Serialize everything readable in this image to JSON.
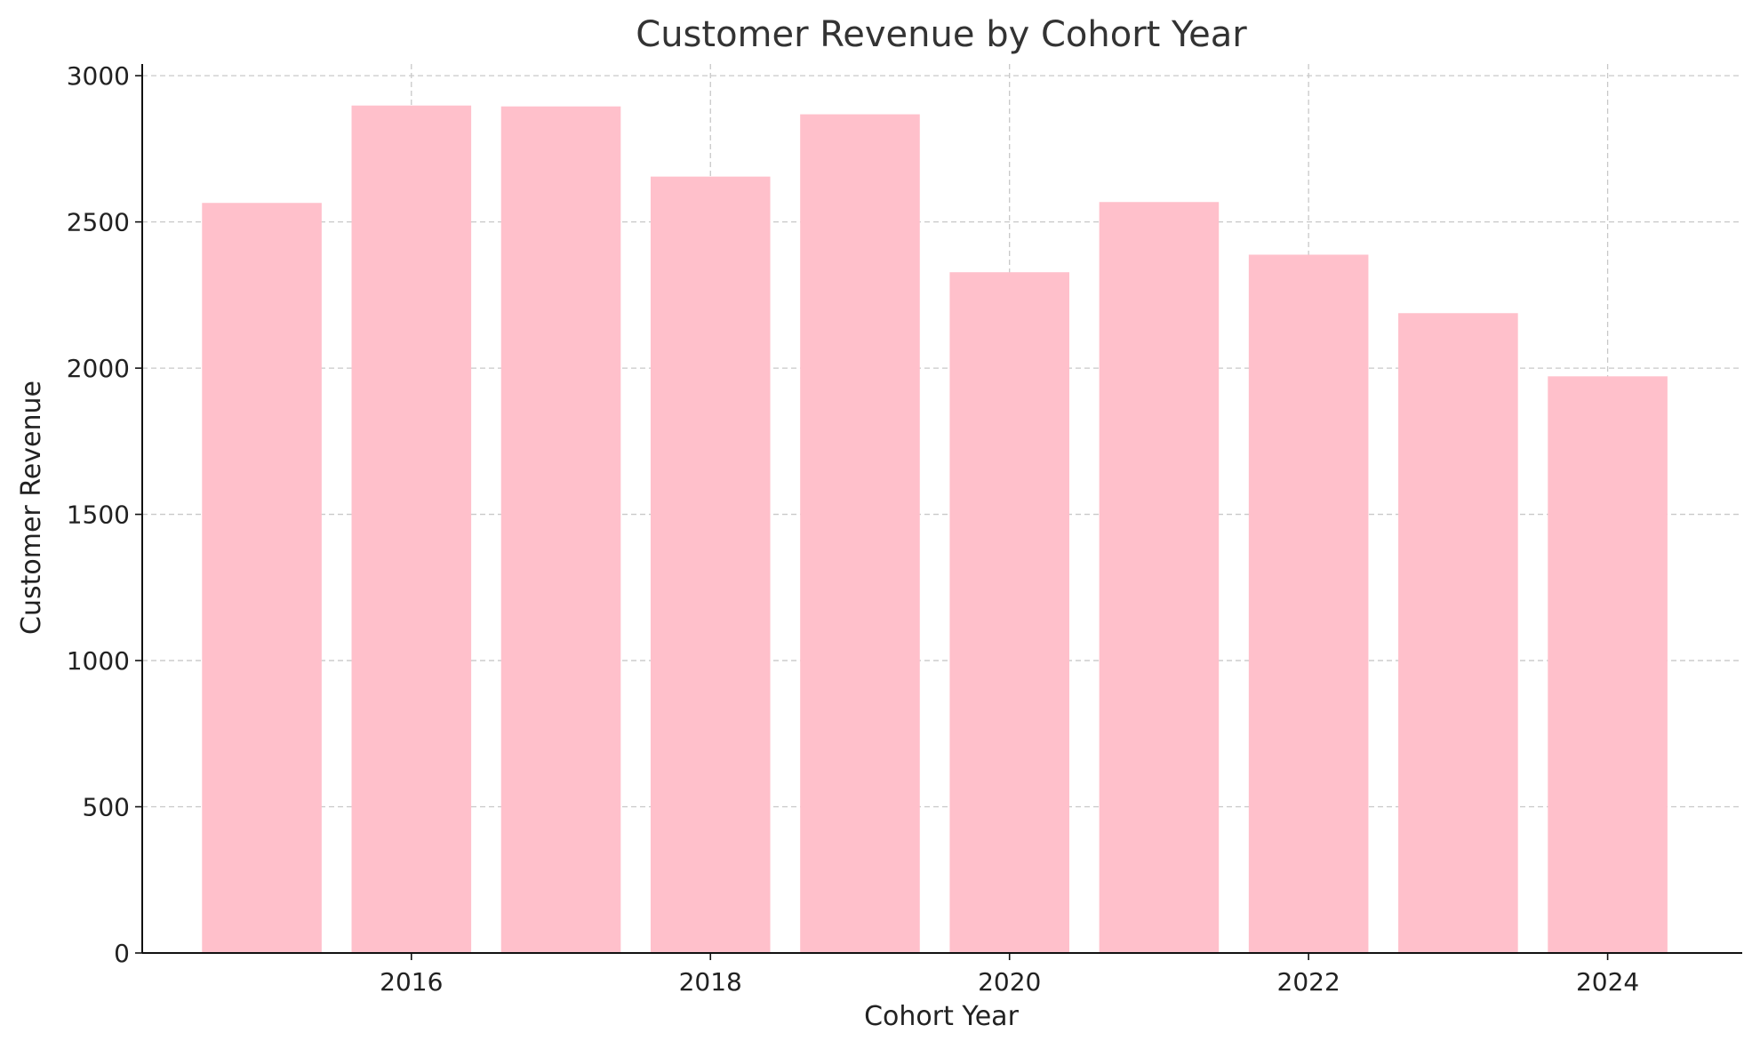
{
  "chart_data": {
    "type": "bar",
    "title": "Customer Revenue by Cohort Year",
    "xlabel": "Cohort Year",
    "ylabel": "Customer Revenue",
    "categories": [
      2015,
      2016,
      2017,
      2018,
      2019,
      2020,
      2021,
      2022,
      2023,
      2024
    ],
    "values": [
      2565,
      2898,
      2895,
      2655,
      2868,
      2328,
      2568,
      2388,
      2188,
      1972
    ],
    "x_ticks": [
      2016,
      2018,
      2020,
      2022,
      2024
    ],
    "y_ticks": [
      0,
      500,
      1000,
      1500,
      2000,
      2500,
      3000
    ],
    "xlim": [
      2014.2,
      2024.9
    ],
    "ylim": [
      0,
      3040
    ],
    "bar_color": "#ffc0cb",
    "grid": true,
    "legend": "none"
  }
}
